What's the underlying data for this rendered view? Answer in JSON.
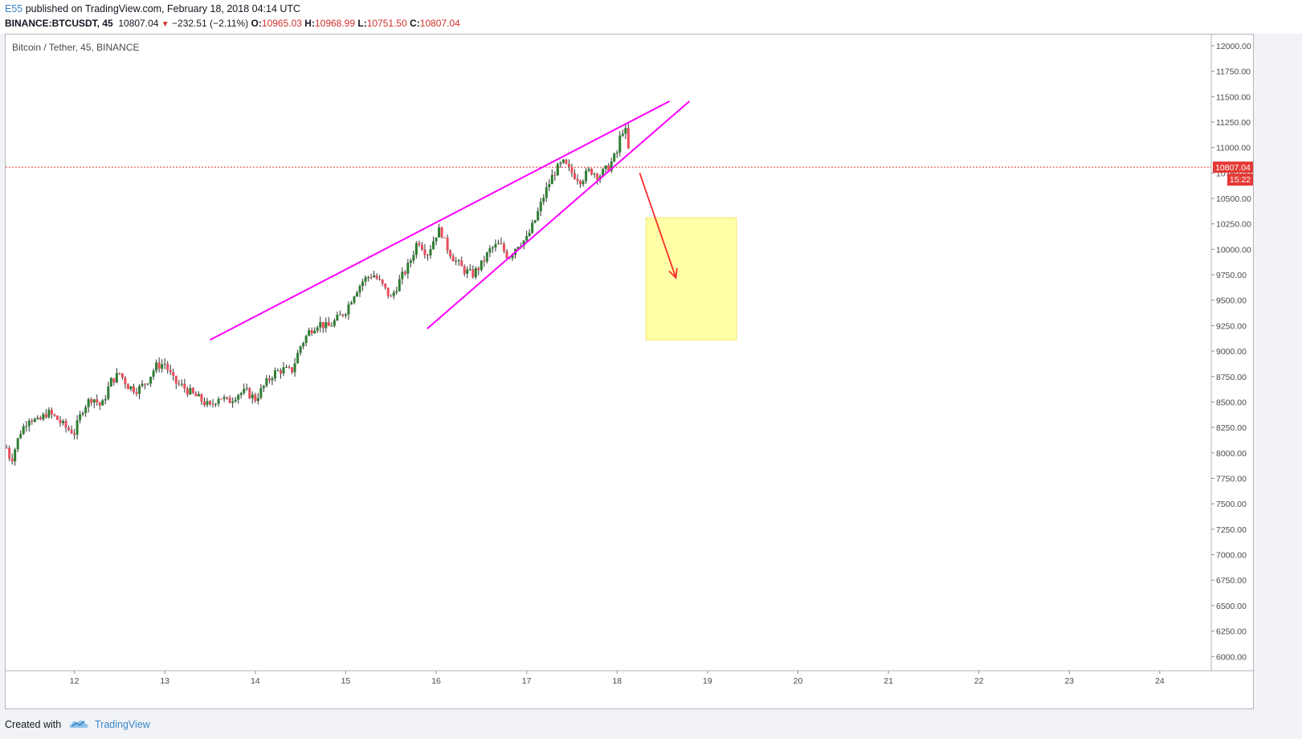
{
  "header": {
    "author": "E55",
    "published_text": "published on TradingView.com, February 18, 2018 04:14 UTC",
    "symbol": "BINANCE:BTCUSDT, 45",
    "last": "10807.04",
    "change": "−232.51 (−2.11%)",
    "o_label": "O:",
    "o_value": "10965.03",
    "h_label": "H:",
    "h_value": "10968.99",
    "l_label": "L:",
    "l_value": "10751.50",
    "c_label": "C:",
    "c_value": "10807.04"
  },
  "legend": {
    "title": "Bitcoin / Tether, 45, BINANCE"
  },
  "footer": {
    "created_with": "Created with",
    "brand": "TradingView"
  },
  "icons": {
    "logo": "tradingview-cloud-logo",
    "down_arrow": "down-triangle-icon"
  },
  "colors": {
    "up": "#53b987",
    "up_body": "#2e7d32",
    "down": "#eb4d5c",
    "trendline": "#ff00ff",
    "arrow": "#ff2a2a",
    "box_fill": "#ffff8a",
    "box_border": "#f5e56b",
    "price_line": "#e53935"
  },
  "chart_data": {
    "type": "candlestick",
    "title": "Bitcoin / Tether, 45, BINANCE",
    "x_ticks": [
      "12",
      "13",
      "14",
      "15",
      "16",
      "17",
      "18",
      "19",
      "20",
      "21",
      "22",
      "23",
      "24"
    ],
    "y_ticks": [
      "12000.00",
      "11750.00",
      "11500.00",
      "11250.00",
      "11000.00",
      "10750.00",
      "10500.00",
      "10250.00",
      "10000.00",
      "9750.00",
      "9500.00",
      "9250.00",
      "9000.00",
      "8750.00",
      "8500.00",
      "8250.00",
      "8000.00",
      "7750.00",
      "7500.00",
      "7250.00",
      "7000.00",
      "6750.00",
      "6500.00",
      "6250.00",
      "6000.00"
    ],
    "ylim": [
      5860,
      12110
    ],
    "xlim": [
      11.24,
      24.56
    ],
    "last_price": 10807.04,
    "last_price_label": "10807.04",
    "countdown_label": "15:22",
    "close_path": [
      [
        11.25,
        8050
      ],
      [
        11.3,
        7920
      ],
      [
        11.4,
        8200
      ],
      [
        11.5,
        8350
      ],
      [
        11.6,
        8300
      ],
      [
        11.7,
        8400
      ],
      [
        11.8,
        8340
      ],
      [
        11.9,
        8250
      ],
      [
        12.0,
        8200
      ],
      [
        12.1,
        8450
      ],
      [
        12.2,
        8550
      ],
      [
        12.3,
        8450
      ],
      [
        12.4,
        8700
      ],
      [
        12.5,
        8780
      ],
      [
        12.6,
        8650
      ],
      [
        12.7,
        8620
      ],
      [
        12.8,
        8700
      ],
      [
        12.9,
        8850
      ],
      [
        13.0,
        8880
      ],
      [
        13.1,
        8700
      ],
      [
        13.2,
        8650
      ],
      [
        13.3,
        8580
      ],
      [
        13.4,
        8520
      ],
      [
        13.5,
        8450
      ],
      [
        13.6,
        8560
      ],
      [
        13.7,
        8500
      ],
      [
        13.8,
        8580
      ],
      [
        13.9,
        8600
      ],
      [
        14.0,
        8530
      ],
      [
        14.1,
        8660
      ],
      [
        14.2,
        8780
      ],
      [
        14.3,
        8820
      ],
      [
        14.4,
        8800
      ],
      [
        14.5,
        9050
      ],
      [
        14.6,
        9200
      ],
      [
        14.7,
        9280
      ],
      [
        14.8,
        9230
      ],
      [
        14.9,
        9310
      ],
      [
        15.0,
        9400
      ],
      [
        15.1,
        9580
      ],
      [
        15.2,
        9700
      ],
      [
        15.3,
        9760
      ],
      [
        15.4,
        9650
      ],
      [
        15.5,
        9520
      ],
      [
        15.6,
        9700
      ],
      [
        15.7,
        9850
      ],
      [
        15.8,
        10100
      ],
      [
        15.9,
        9950
      ],
      [
        16.0,
        10150
      ],
      [
        16.05,
        10200
      ],
      [
        16.1,
        10050
      ],
      [
        16.2,
        9900
      ],
      [
        16.3,
        9800
      ],
      [
        16.4,
        9750
      ],
      [
        16.5,
        9850
      ],
      [
        16.6,
        10000
      ],
      [
        16.7,
        10050
      ],
      [
        16.8,
        9920
      ],
      [
        16.9,
        10050
      ],
      [
        17.0,
        10100
      ],
      [
        17.1,
        10300
      ],
      [
        17.2,
        10550
      ],
      [
        17.3,
        10750
      ],
      [
        17.4,
        10850
      ],
      [
        17.5,
        10750
      ],
      [
        17.6,
        10680
      ],
      [
        17.7,
        10780
      ],
      [
        17.8,
        10720
      ],
      [
        17.9,
        10800
      ],
      [
        18.0,
        10950
      ],
      [
        18.05,
        11180
      ],
      [
        18.1,
        11150
      ],
      [
        18.15,
        10807.04
      ]
    ]
  },
  "annotations": {
    "upper_trendline": [
      [
        13.5,
        9110
      ],
      [
        18.58,
        11455
      ]
    ],
    "lower_trendline": [
      [
        15.9,
        9220
      ],
      [
        18.8,
        11455
      ]
    ],
    "arrow": [
      [
        18.25,
        10750
      ],
      [
        18.65,
        9720
      ]
    ],
    "target_box": {
      "x_from": 18.32,
      "x_to": 19.32,
      "y_from": 10310,
      "y_to": 9110
    }
  }
}
